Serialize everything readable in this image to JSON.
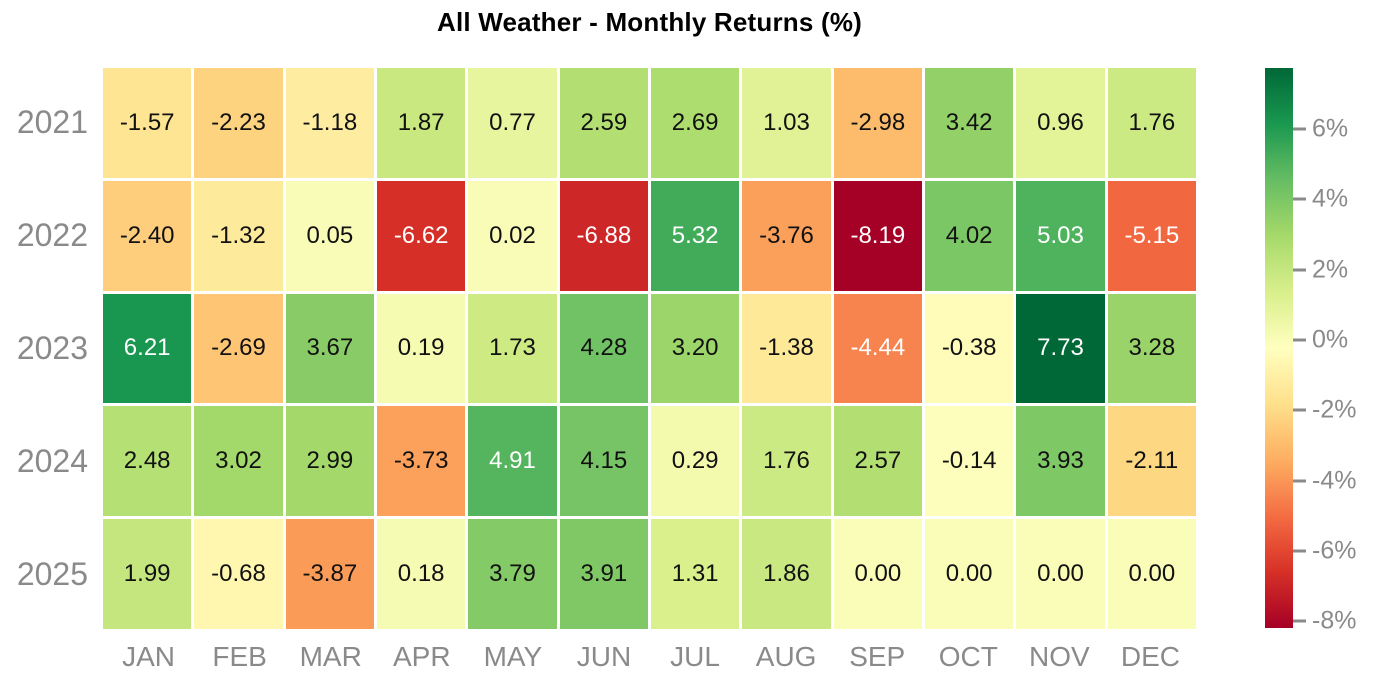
{
  "title": "All Weather - Monthly Returns (%)",
  "chart_data": {
    "type": "heatmap",
    "title": "All Weather - Monthly Returns (%)",
    "x_categories": [
      "JAN",
      "FEB",
      "MAR",
      "APR",
      "MAY",
      "JUN",
      "JUL",
      "AUG",
      "SEP",
      "OCT",
      "NOV",
      "DEC"
    ],
    "y_categories": [
      "2021",
      "2022",
      "2023",
      "2024",
      "2025"
    ],
    "series": [
      {
        "name": "2021",
        "values": [
          -1.57,
          -2.23,
          -1.18,
          1.87,
          0.77,
          2.59,
          2.69,
          1.03,
          -2.98,
          3.42,
          0.96,
          1.76
        ]
      },
      {
        "name": "2022",
        "values": [
          -2.4,
          -1.32,
          0.05,
          -6.62,
          0.02,
          -6.88,
          5.32,
          -3.76,
          -8.19,
          4.02,
          5.03,
          -5.15
        ]
      },
      {
        "name": "2023",
        "values": [
          6.21,
          -2.69,
          3.67,
          0.19,
          1.73,
          4.28,
          3.2,
          -1.38,
          -4.44,
          -0.38,
          7.73,
          3.28
        ]
      },
      {
        "name": "2024",
        "values": [
          2.48,
          3.02,
          2.99,
          -3.73,
          4.91,
          4.15,
          0.29,
          1.76,
          2.57,
          -0.14,
          3.93,
          -2.11
        ]
      },
      {
        "name": "2025",
        "values": [
          1.99,
          -0.68,
          -3.87,
          0.18,
          3.79,
          3.91,
          1.31,
          1.86,
          0.0,
          0.0,
          0.0,
          0.0
        ]
      }
    ],
    "value_decimals": 2,
    "colormap": "RdYlGn",
    "vmin": -8.19,
    "vmax": 7.73,
    "colorbar": {
      "position": "right",
      "tick_values": [
        6,
        4,
        2,
        0,
        -2,
        -4,
        -6,
        -8
      ],
      "tick_labels": [
        "6%",
        "4%",
        "2%",
        "0%",
        "-2%",
        "-4%",
        "-6%",
        "-8%"
      ]
    },
    "grid": false
  },
  "colors": {
    "rdylgn_anchors": [
      "#a50026",
      "#d73027",
      "#f46d43",
      "#fdae61",
      "#fee08b",
      "#ffffbf",
      "#d9ef8b",
      "#a6d96a",
      "#66bd63",
      "#1a9850",
      "#006837"
    ],
    "axis_text": "#8a8a8a",
    "cell_text_dark": "#111111",
    "cell_text_light": "#ffffff",
    "title_text": "#000000",
    "background": "#ffffff"
  }
}
